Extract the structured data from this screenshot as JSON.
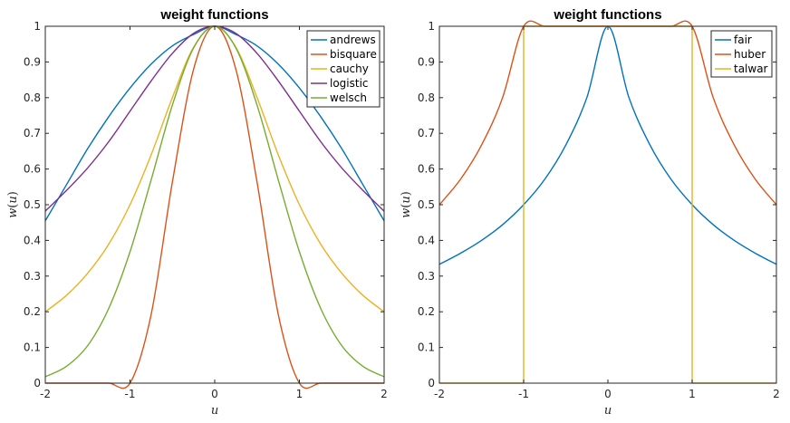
{
  "chart_data": [
    {
      "type": "line",
      "title": "weight functions",
      "xlabel": "u",
      "ylabel": "w(u)",
      "ylabel_parts": {
        "fn": "w",
        "open": "(",
        "arg": "u",
        "close": ")"
      },
      "xlim": [
        -2,
        2
      ],
      "ylim": [
        0,
        1
      ],
      "xticks": [
        -2,
        -1,
        0,
        1,
        2
      ],
      "yticks": [
        0,
        0.1,
        0.2,
        0.3,
        0.4,
        0.5,
        0.6,
        0.7,
        0.8,
        0.9,
        1
      ],
      "xtick_labels": [
        "-2",
        "-1",
        "0",
        "1",
        "2"
      ],
      "ytick_labels": [
        "0",
        "0.1",
        "0.2",
        "0.3",
        "0.4",
        "0.5",
        "0.6",
        "0.7",
        "0.8",
        "0.9",
        "1"
      ],
      "grid": false,
      "legend_position": "top-right",
      "x": [
        -2,
        -1.75,
        -1.5,
        -1.25,
        -1,
        -0.75,
        -0.5,
        -0.25,
        0,
        0.25,
        0.5,
        0.75,
        1,
        1.25,
        1.5,
        1.75,
        2
      ],
      "series": [
        {
          "name": "andrews",
          "color": "#0072BD",
          "values": [
            0.455,
            0.556,
            0.657,
            0.747,
            0.827,
            0.894,
            0.945,
            0.977,
            1.0,
            0.977,
            0.945,
            0.894,
            0.827,
            0.747,
            0.657,
            0.556,
            0.455
          ]
        },
        {
          "name": "bisquare",
          "color": "#D95319",
          "values": [
            0,
            0,
            0,
            0,
            0,
            0.193,
            0.563,
            0.879,
            1.0,
            0.879,
            0.563,
            0.193,
            0,
            0,
            0,
            0,
            0
          ]
        },
        {
          "name": "cauchy",
          "color": "#EDB120",
          "values": [
            0.2,
            0.246,
            0.308,
            0.39,
            0.5,
            0.64,
            0.8,
            0.941,
            1.0,
            0.941,
            0.8,
            0.64,
            0.5,
            0.39,
            0.308,
            0.246,
            0.2
          ]
        },
        {
          "name": "logistic",
          "color": "#7E2F8E",
          "values": [
            0.482,
            0.54,
            0.603,
            0.677,
            0.762,
            0.847,
            0.924,
            0.98,
            1.0,
            0.98,
            0.924,
            0.847,
            0.762,
            0.677,
            0.603,
            0.54,
            0.482
          ]
        },
        {
          "name": "welsch",
          "color": "#77AC30",
          "values": [
            0.018,
            0.047,
            0.105,
            0.21,
            0.368,
            0.57,
            0.779,
            0.939,
            1.0,
            0.939,
            0.779,
            0.57,
            0.368,
            0.21,
            0.105,
            0.047,
            0.018
          ]
        }
      ]
    },
    {
      "type": "line",
      "title": "weight functions",
      "xlabel": "u",
      "ylabel": "w(u)",
      "ylabel_parts": {
        "fn": "w",
        "open": "(",
        "arg": "u",
        "close": ")"
      },
      "xlim": [
        -2,
        2
      ],
      "ylim": [
        0,
        1
      ],
      "xticks": [
        -2,
        -1,
        0,
        1,
        2
      ],
      "yticks": [
        0,
        0.1,
        0.2,
        0.3,
        0.4,
        0.5,
        0.6,
        0.7,
        0.8,
        0.9,
        1
      ],
      "xtick_labels": [
        "-2",
        "-1",
        "0",
        "1",
        "2"
      ],
      "ytick_labels": [
        "0",
        "0.1",
        "0.2",
        "0.3",
        "0.4",
        "0.5",
        "0.6",
        "0.7",
        "0.8",
        "0.9",
        "1"
      ],
      "grid": false,
      "legend_position": "top-right",
      "x": [
        -2,
        -1.75,
        -1.5,
        -1.25,
        -1,
        -0.75,
        -0.5,
        -0.25,
        0,
        0.25,
        0.5,
        0.75,
        1,
        1.25,
        1.5,
        1.75,
        2
      ],
      "series": [
        {
          "name": "fair",
          "color": "#0072BD",
          "values": [
            0.333,
            0.364,
            0.4,
            0.444,
            0.5,
            0.571,
            0.667,
            0.8,
            1.0,
            0.8,
            0.667,
            0.571,
            0.5,
            0.444,
            0.4,
            0.364,
            0.333
          ]
        },
        {
          "name": "huber",
          "color": "#D95319",
          "values": [
            0.5,
            0.571,
            0.667,
            0.8,
            1.0,
            1.0,
            1.0,
            1.0,
            1.0,
            1.0,
            1.0,
            1.0,
            1.0,
            0.8,
            0.667,
            0.571,
            0.5
          ]
        },
        {
          "name": "talwar",
          "color": "#EDB120",
          "x": [
            -2,
            -1,
            -1,
            1,
            1,
            2
          ],
          "values": [
            0,
            0,
            1,
            1,
            0,
            0
          ]
        }
      ]
    }
  ]
}
